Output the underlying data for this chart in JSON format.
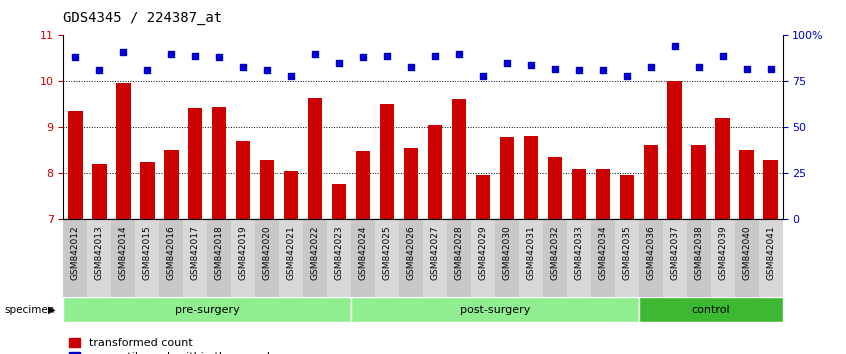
{
  "title": "GDS4345 / 224387_at",
  "samples": [
    "GSM842012",
    "GSM842013",
    "GSM842014",
    "GSM842015",
    "GSM842016",
    "GSM842017",
    "GSM842018",
    "GSM842019",
    "GSM842020",
    "GSM842021",
    "GSM842022",
    "GSM842023",
    "GSM842024",
    "GSM842025",
    "GSM842026",
    "GSM842027",
    "GSM842028",
    "GSM842029",
    "GSM842030",
    "GSM842031",
    "GSM842032",
    "GSM842033",
    "GSM842034",
    "GSM842035",
    "GSM842036",
    "GSM842037",
    "GSM842038",
    "GSM842039",
    "GSM842040",
    "GSM842041"
  ],
  "bar_values": [
    9.35,
    8.2,
    9.97,
    8.25,
    8.5,
    9.42,
    9.45,
    8.7,
    8.3,
    8.05,
    9.65,
    7.78,
    8.48,
    9.52,
    8.55,
    9.05,
    9.62,
    7.97,
    8.8,
    8.82,
    8.35,
    8.1,
    8.1,
    7.97,
    8.62,
    10.0,
    8.62,
    9.2,
    8.5,
    8.3
  ],
  "dot_percentiles": [
    88,
    81,
    91,
    81,
    90,
    89,
    88,
    83,
    81,
    78,
    90,
    85,
    88,
    89,
    83,
    89,
    90,
    78,
    85,
    84,
    82,
    81,
    81,
    78,
    83,
    94,
    83,
    89,
    82,
    82
  ],
  "groups": [
    {
      "label": "pre-surgery",
      "start": 0,
      "end": 12,
      "color": "#90EE90"
    },
    {
      "label": "post-surgery",
      "start": 12,
      "end": 24,
      "color": "#90EE90"
    },
    {
      "label": "control",
      "start": 24,
      "end": 30,
      "color": "#3CB832"
    }
  ],
  "bar_color": "#CC0000",
  "dot_color": "#0000CC",
  "ylim_left": [
    7,
    11
  ],
  "ylim_right": [
    0,
    100
  ],
  "yticks_left": [
    7,
    8,
    9,
    10,
    11
  ],
  "yticks_right": [
    0,
    25,
    50,
    75,
    100
  ],
  "right_tick_labels": [
    "0",
    "25",
    "50",
    "75",
    "100%"
  ],
  "background_color": "#ffffff",
  "title_fontsize": 10,
  "tick_label_fontsize": 6.5,
  "group_label_fontsize": 8,
  "legend_fontsize": 8
}
